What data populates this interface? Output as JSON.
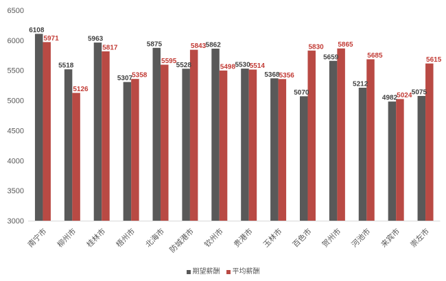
{
  "chart_data": {
    "type": "bar",
    "categories": [
      "南宁市",
      "柳州市",
      "桂林市",
      "梧州市",
      "北海市",
      "防城港市",
      "钦州市",
      "贵港市",
      "玉林市",
      "百色市",
      "贺州市",
      "河池市",
      "来宾市",
      "崇左市"
    ],
    "series": [
      {
        "name": "期望薪酬",
        "values": [
          6108,
          5518,
          5963,
          5307,
          5875,
          5528,
          5862,
          5530,
          5368,
          5070,
          5659,
          5212,
          4982,
          5075
        ],
        "color": "#595959",
        "label_color": "#404040"
      },
      {
        "name": "平均薪酬",
        "values": [
          5971,
          5126,
          5817,
          5358,
          5595,
          5843,
          5498,
          5514,
          5356,
          5830,
          5865,
          5685,
          5024,
          5615
        ],
        "color": "#b94a44",
        "label_color": "#c23b35"
      }
    ],
    "ylim": [
      3000,
      6500
    ],
    "yticks": [
      3000,
      3500,
      4000,
      4500,
      5000,
      5500,
      6000,
      6500
    ],
    "grid": false,
    "legend": "bottom",
    "data_labels": true
  }
}
